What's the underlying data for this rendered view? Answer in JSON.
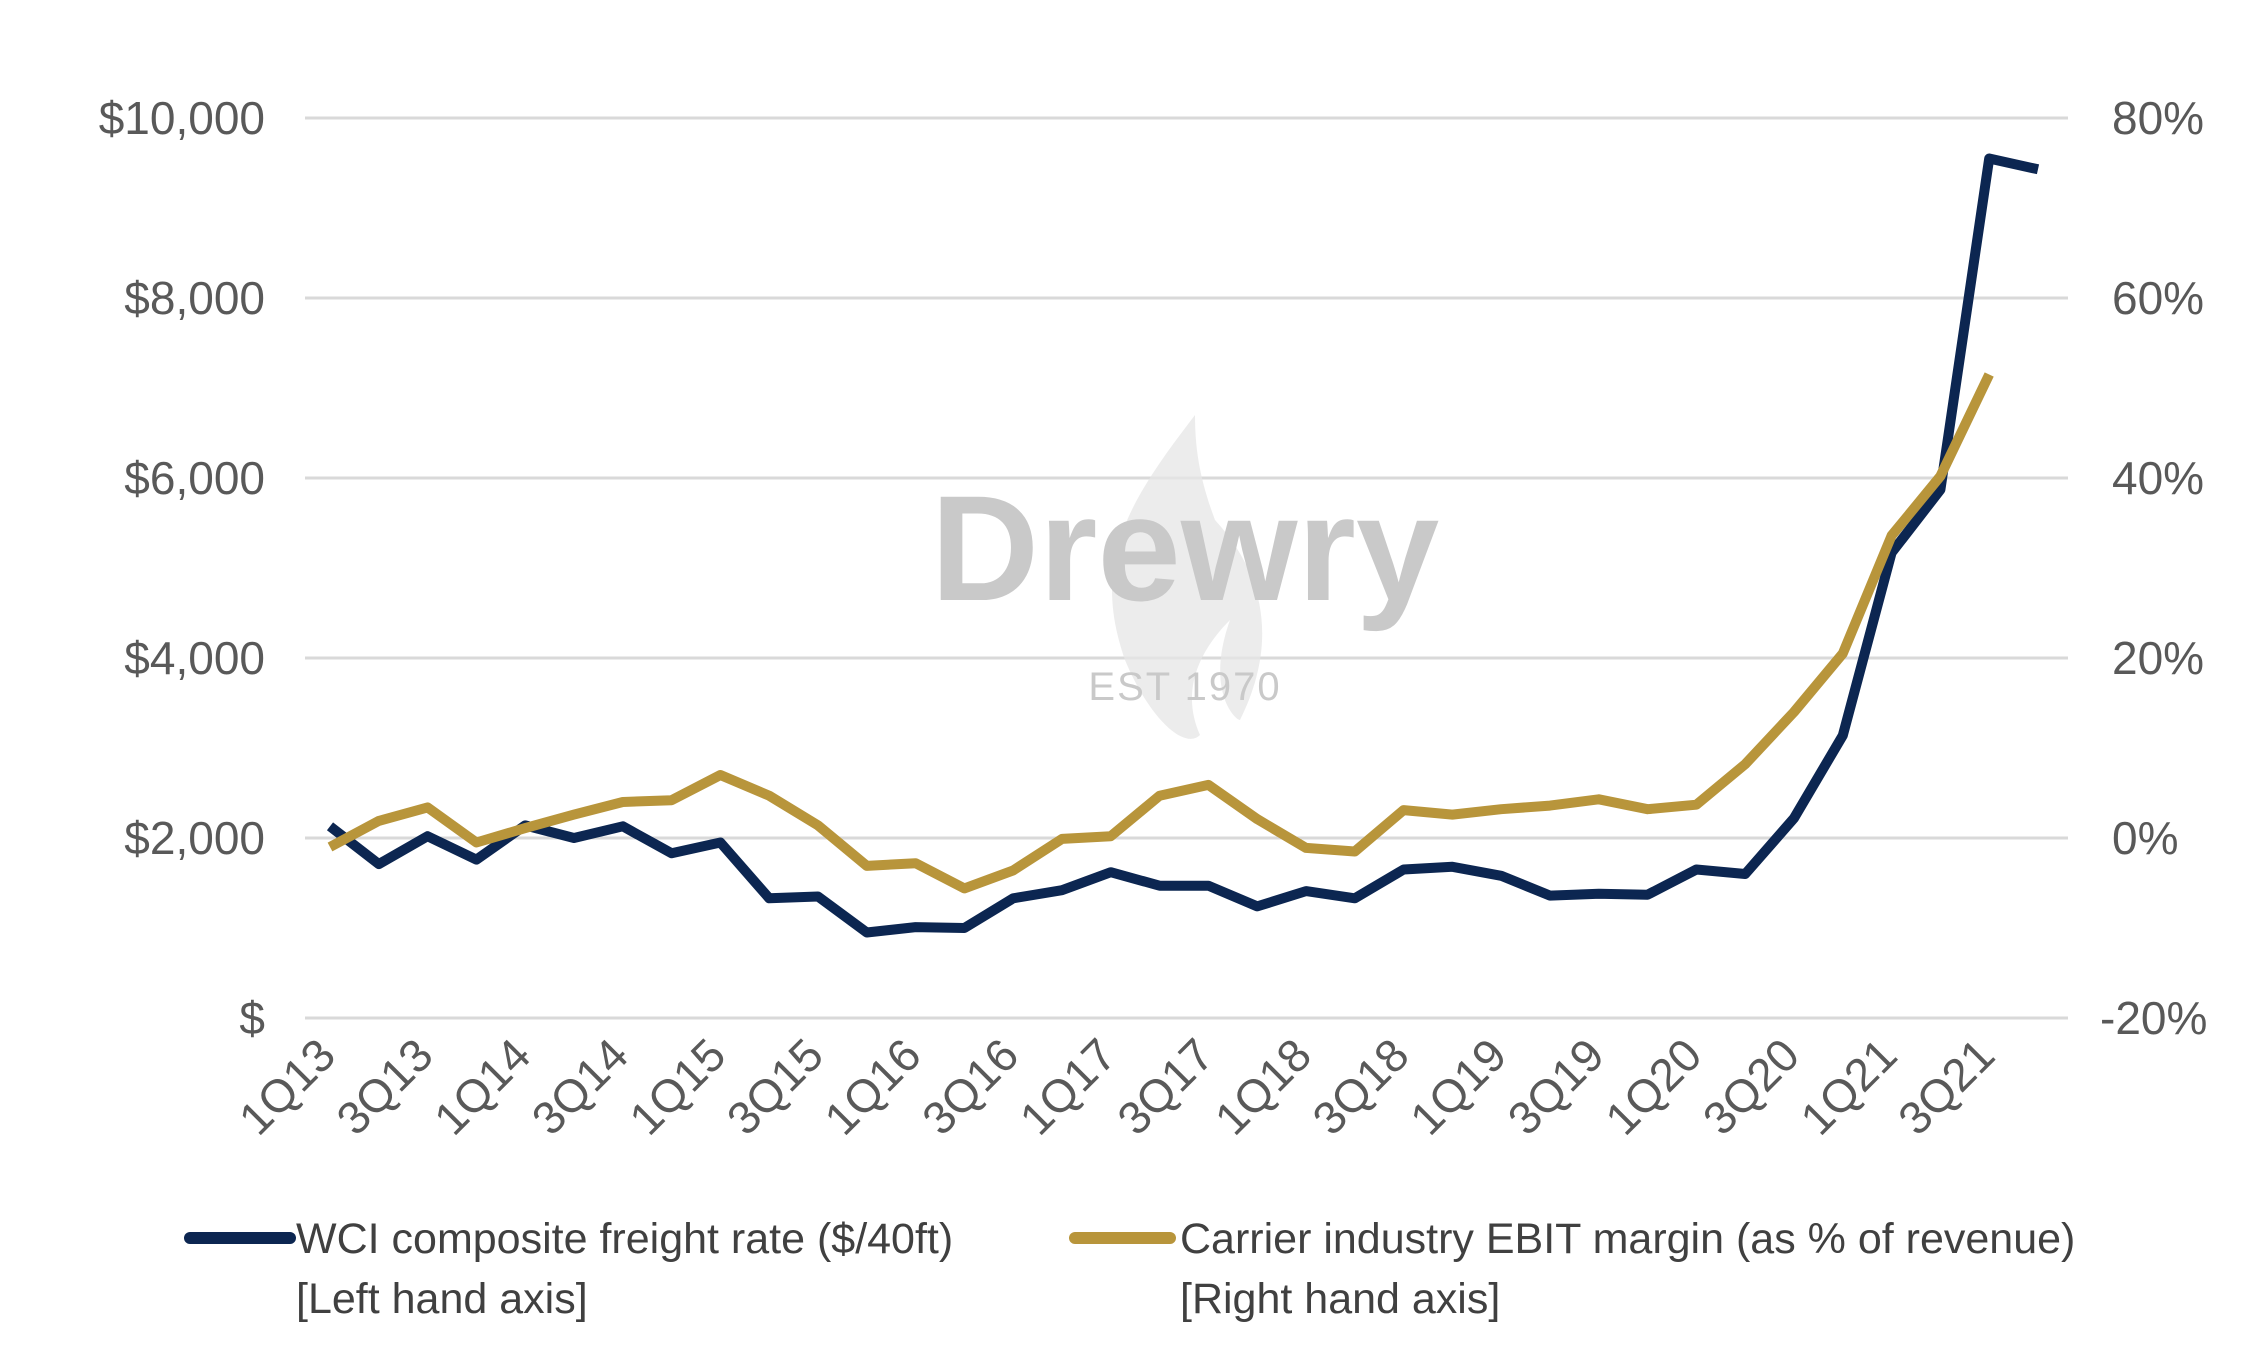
{
  "chart_data": {
    "type": "line",
    "x": [
      "1Q13",
      "2Q13",
      "3Q13",
      "4Q13",
      "1Q14",
      "2Q14",
      "3Q14",
      "4Q14",
      "1Q15",
      "2Q15",
      "3Q15",
      "4Q15",
      "1Q16",
      "2Q16",
      "3Q16",
      "4Q16",
      "1Q17",
      "2Q17",
      "3Q17",
      "4Q17",
      "1Q18",
      "2Q18",
      "3Q18",
      "4Q18",
      "1Q19",
      "2Q19",
      "3Q19",
      "4Q19",
      "1Q20",
      "2Q20",
      "3Q20",
      "4Q20",
      "1Q21",
      "2Q21",
      "3Q21",
      "4Q21"
    ],
    "x_tick_labels": [
      "1Q13",
      "3Q13",
      "1Q14",
      "3Q14",
      "1Q15",
      "3Q15",
      "1Q16",
      "3Q16",
      "1Q17",
      "3Q17",
      "1Q18",
      "3Q18",
      "1Q19",
      "3Q19",
      "1Q20",
      "3Q20",
      "1Q21",
      "3Q21"
    ],
    "y_left": {
      "ylim": [
        0,
        10000
      ],
      "tick_labels": [
        "$",
        "$2,000",
        "$4,000",
        "$6,000",
        "$8,000",
        "$10,000"
      ],
      "tick_values": [
        0,
        2000,
        4000,
        6000,
        8000,
        10000
      ]
    },
    "y_right": {
      "ylim": [
        -20,
        80
      ],
      "tick_labels": [
        "-20%",
        "0%",
        "20%",
        "40%",
        "60%",
        "80%"
      ],
      "tick_values": [
        -20,
        0,
        20,
        40,
        60,
        80
      ]
    },
    "grid": true,
    "series": [
      {
        "name": "WCI composite freight rate ($/40ft)",
        "legend_note": "[Left hand axis]",
        "axis": "left",
        "color": "#0c2651",
        "values": [
          2130,
          1710,
          2020,
          1760,
          2140,
          2000,
          2130,
          1830,
          1950,
          1330,
          1350,
          950,
          1010,
          1000,
          1330,
          1420,
          1620,
          1470,
          1470,
          1240,
          1410,
          1330,
          1650,
          1680,
          1580,
          1360,
          1380,
          1370,
          1650,
          1600,
          2220,
          3140,
          5170,
          5870,
          9550,
          9430
        ]
      },
      {
        "name": "Carrier industry EBIT margin (as % of revenue)",
        "legend_note": "[Right hand axis]",
        "axis": "right",
        "color": "#b8953b",
        "values": [
          -1.0,
          1.9,
          3.4,
          -0.5,
          1.1,
          2.6,
          4.0,
          4.2,
          7.0,
          4.7,
          1.4,
          -3.1,
          -2.8,
          -5.6,
          -3.6,
          -0.1,
          0.2,
          4.7,
          5.9,
          2.1,
          -1.1,
          -1.5,
          3.1,
          2.6,
          3.2,
          3.6,
          4.3,
          3.2,
          3.7,
          8.2,
          14.0,
          20.5,
          33.6,
          40.2,
          51.5,
          null
        ]
      }
    ]
  },
  "watermark": {
    "brand": "Drewry",
    "subtitle": "EST 1970"
  }
}
